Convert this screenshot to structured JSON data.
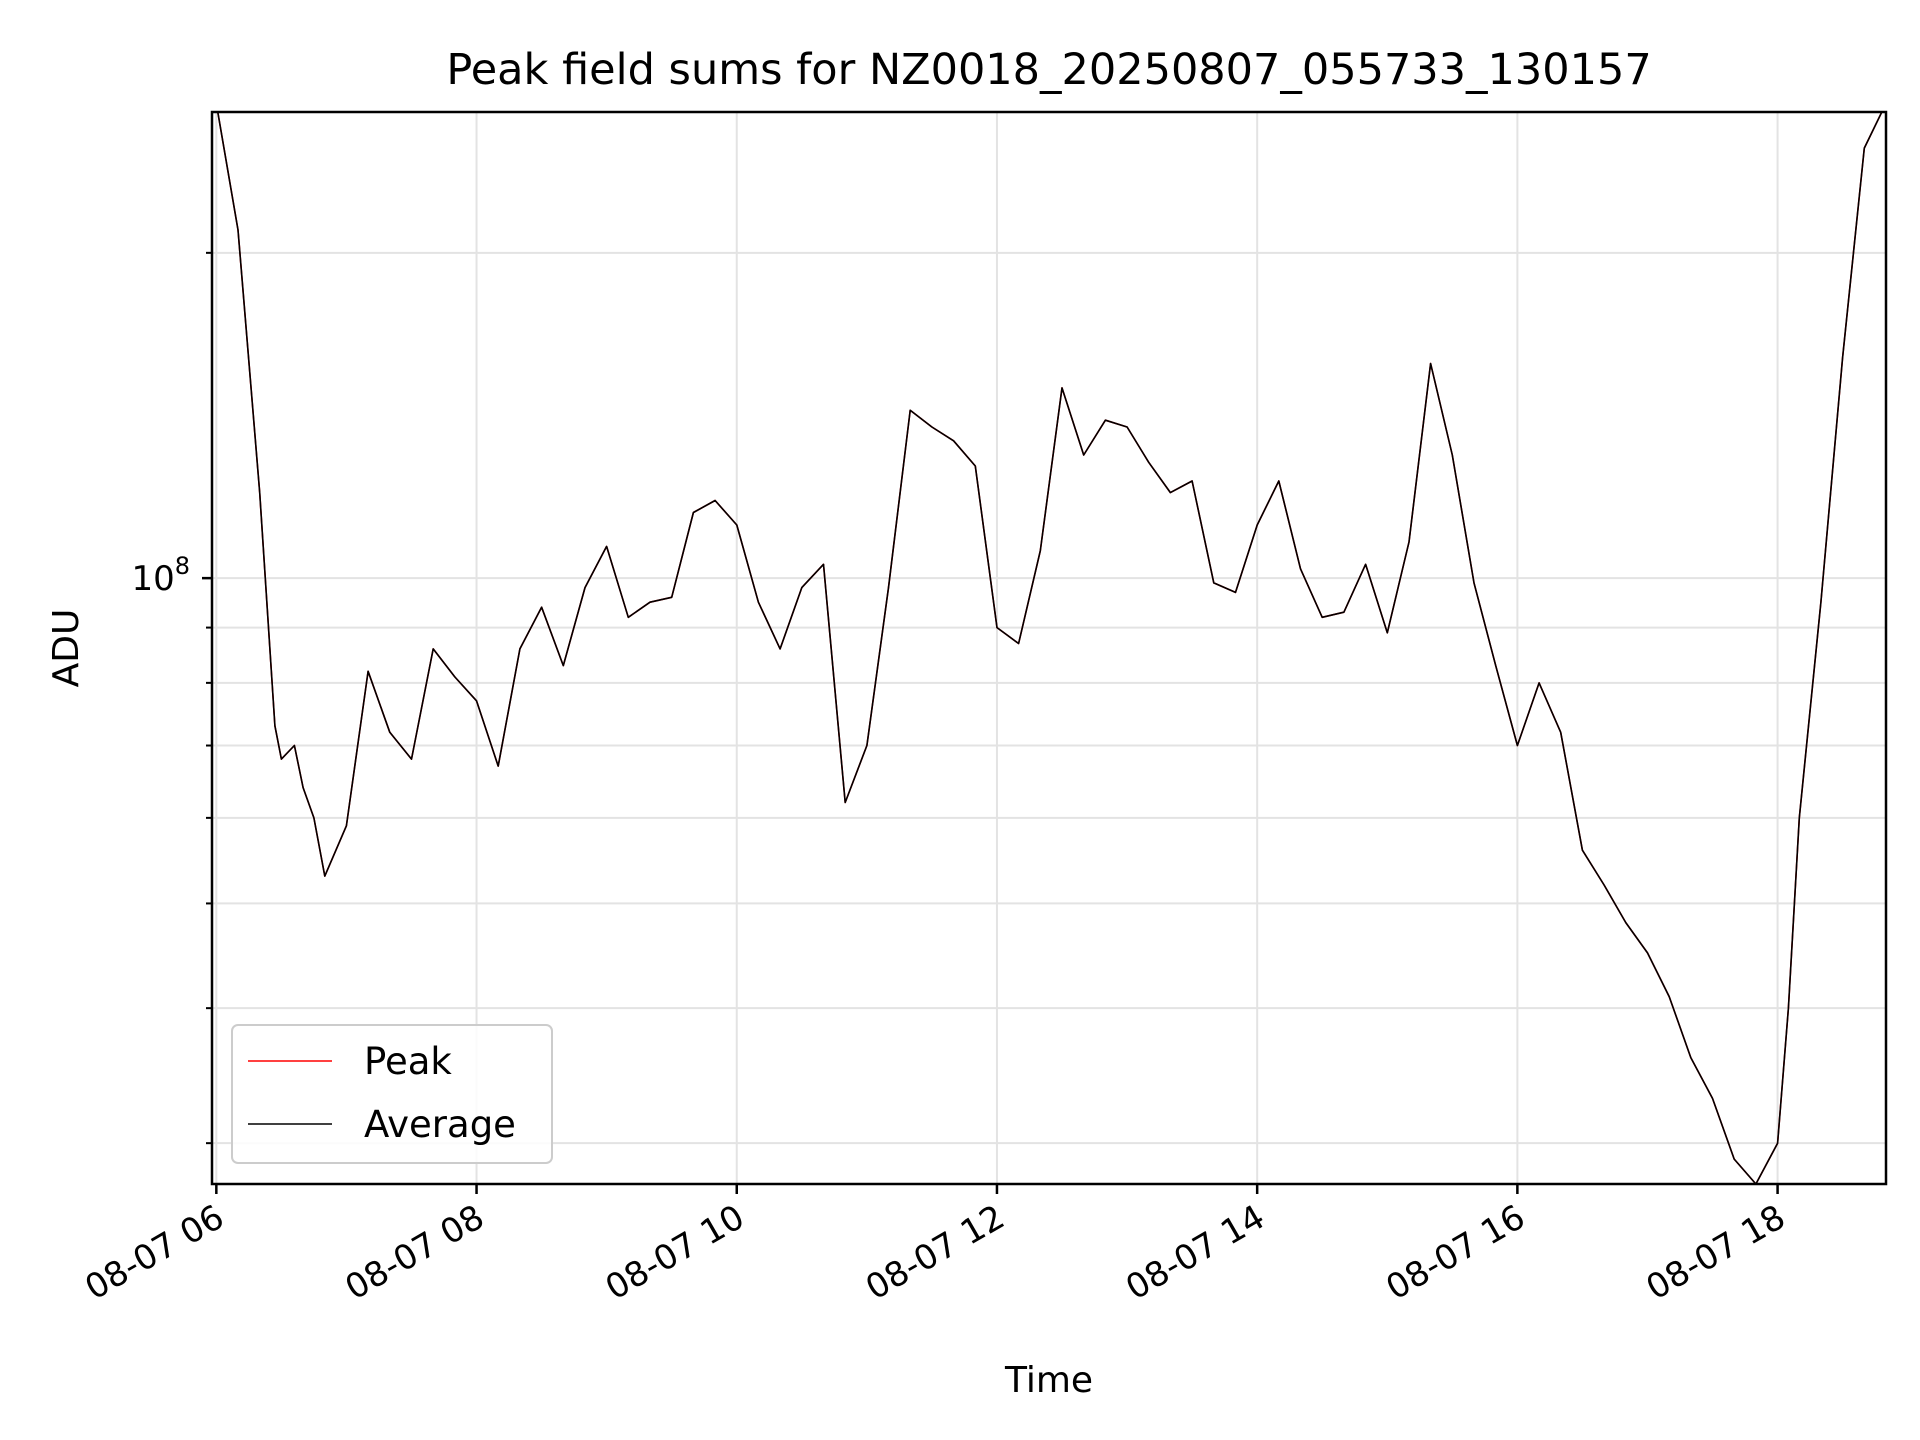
{
  "chart_data": {
    "type": "line",
    "title": "Peak field sums for NZ0018_20250807_055733_130157",
    "xlabel": "Time",
    "ylabel": "ADU",
    "y_scale": "log",
    "ylim": [
      27500000,
      270000000
    ],
    "xlim": [
      "2025-08-07 05:58",
      "2025-08-07 18:50"
    ],
    "x_ticks": [
      {
        "t": "2025-08-07 06:00",
        "label": "08-07 06"
      },
      {
        "t": "2025-08-07 08:00",
        "label": "08-07 08"
      },
      {
        "t": "2025-08-07 10:00",
        "label": "08-07 10"
      },
      {
        "t": "2025-08-07 12:00",
        "label": "08-07 12"
      },
      {
        "t": "2025-08-07 14:00",
        "label": "08-07 14"
      },
      {
        "t": "2025-08-07 16:00",
        "label": "08-07 16"
      },
      {
        "t": "2025-08-07 18:00",
        "label": "08-07 18"
      }
    ],
    "y_major_ticks": [
      {
        "value": 100000000,
        "label": "10",
        "exp": "8"
      }
    ],
    "y_minor_ticks": [
      30000000,
      40000000,
      50000000,
      60000000,
      70000000,
      80000000,
      90000000,
      200000000
    ],
    "grid": true,
    "legend_position": "lower-left",
    "x": [
      "2025-08-07 06:00",
      "2025-08-07 06:10",
      "2025-08-07 06:20",
      "2025-08-07 06:27",
      "2025-08-07 06:30",
      "2025-08-07 06:36",
      "2025-08-07 06:40",
      "2025-08-07 06:45",
      "2025-08-07 06:50",
      "2025-08-07 07:00",
      "2025-08-07 07:10",
      "2025-08-07 07:20",
      "2025-08-07 07:30",
      "2025-08-07 07:40",
      "2025-08-07 07:50",
      "2025-08-07 08:00",
      "2025-08-07 08:10",
      "2025-08-07 08:20",
      "2025-08-07 08:30",
      "2025-08-07 08:40",
      "2025-08-07 08:50",
      "2025-08-07 09:00",
      "2025-08-07 09:10",
      "2025-08-07 09:20",
      "2025-08-07 09:30",
      "2025-08-07 09:40",
      "2025-08-07 09:50",
      "2025-08-07 10:00",
      "2025-08-07 10:10",
      "2025-08-07 10:20",
      "2025-08-07 10:30",
      "2025-08-07 10:40",
      "2025-08-07 10:50",
      "2025-08-07 11:00",
      "2025-08-07 11:10",
      "2025-08-07 11:20",
      "2025-08-07 11:30",
      "2025-08-07 11:40",
      "2025-08-07 11:50",
      "2025-08-07 12:00",
      "2025-08-07 12:10",
      "2025-08-07 12:20",
      "2025-08-07 12:30",
      "2025-08-07 12:40",
      "2025-08-07 12:50",
      "2025-08-07 13:00",
      "2025-08-07 13:10",
      "2025-08-07 13:20",
      "2025-08-07 13:30",
      "2025-08-07 13:40",
      "2025-08-07 13:50",
      "2025-08-07 14:00",
      "2025-08-07 14:10",
      "2025-08-07 14:20",
      "2025-08-07 14:30",
      "2025-08-07 14:40",
      "2025-08-07 14:50",
      "2025-08-07 15:00",
      "2025-08-07 15:10",
      "2025-08-07 15:20",
      "2025-08-07 15:30",
      "2025-08-07 15:40",
      "2025-08-07 15:50",
      "2025-08-07 16:00",
      "2025-08-07 16:10",
      "2025-08-07 16:20",
      "2025-08-07 16:30",
      "2025-08-07 16:40",
      "2025-08-07 16:50",
      "2025-08-07 17:00",
      "2025-08-07 17:10",
      "2025-08-07 17:20",
      "2025-08-07 17:30",
      "2025-08-07 17:40",
      "2025-08-07 17:50",
      "2025-08-07 18:00",
      "2025-08-07 18:05",
      "2025-08-07 18:10",
      "2025-08-07 18:20",
      "2025-08-07 18:30",
      "2025-08-07 18:40",
      "2025-08-07 18:50"
    ],
    "series": [
      {
        "name": "Peak",
        "color": "#ff0000",
        "values": [
          275000000,
          210000000,
          120000000,
          73000000,
          68000000,
          70000000,
          64000000,
          60000000,
          53000000,
          59000000,
          82000000,
          72000000,
          68000000,
          86000000,
          81000000,
          77000000,
          67000000,
          86000000,
          94000000,
          83000000,
          98000000,
          107000000,
          92000000,
          95000000,
          96000000,
          115000000,
          118000000,
          112000000,
          95000000,
          86000000,
          98000000,
          103000000,
          62000000,
          70000000,
          98000000,
          143000000,
          138000000,
          134000000,
          127000000,
          90000000,
          87000000,
          106000000,
          150000000,
          130000000,
          140000000,
          138000000,
          128000000,
          120000000,
          123000000,
          99000000,
          97000000,
          112000000,
          123000000,
          102000000,
          92000000,
          93000000,
          103000000,
          89000000,
          108000000,
          158000000,
          130000000,
          99000000,
          83000000,
          70000000,
          80000000,
          72000000,
          56000000,
          52000000,
          48000000,
          45000000,
          41000000,
          36000000,
          33000000,
          29000000,
          27500000,
          30000000,
          40000000,
          60000000,
          95000000,
          160000000,
          250000000,
          275000000
        ]
      },
      {
        "name": "Average",
        "color": "#000000",
        "values": [
          275000000,
          210000000,
          120000000,
          73000000,
          68000000,
          70000000,
          64000000,
          60000000,
          53000000,
          59000000,
          82000000,
          72000000,
          68000000,
          86000000,
          81000000,
          77000000,
          67000000,
          86000000,
          94000000,
          83000000,
          98000000,
          107000000,
          92000000,
          95000000,
          96000000,
          115000000,
          118000000,
          112000000,
          95000000,
          86000000,
          98000000,
          103000000,
          62000000,
          70000000,
          98000000,
          143000000,
          138000000,
          134000000,
          127000000,
          90000000,
          87000000,
          106000000,
          150000000,
          130000000,
          140000000,
          138000000,
          128000000,
          120000000,
          123000000,
          99000000,
          97000000,
          112000000,
          123000000,
          102000000,
          92000000,
          93000000,
          103000000,
          89000000,
          108000000,
          158000000,
          130000000,
          99000000,
          83000000,
          70000000,
          80000000,
          72000000,
          56000000,
          52000000,
          48000000,
          45000000,
          41000000,
          36000000,
          33000000,
          29000000,
          27500000,
          30000000,
          40000000,
          60000000,
          95000000,
          160000000,
          250000000,
          275000000
        ]
      }
    ]
  }
}
